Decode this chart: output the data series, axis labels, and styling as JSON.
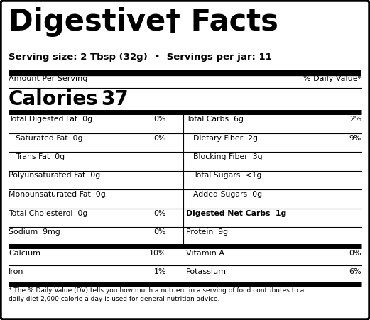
{
  "title_part1": "Digestive",
  "title_sup": "†",
  "title_part2": " Facts",
  "serving_size": "Serving size: 2 Tbsp (32g)  •  Servings per jar: 11",
  "amount_per_serving": "Amount Per Serving",
  "daily_value_header": "% Daily Value*",
  "calories_label": "Calories",
  "calories_value": "37",
  "left_nutrients": [
    {
      "name": "Total Digested Fat",
      "amount": "0g",
      "dv": "0%",
      "indent": 0,
      "bold_name": false
    },
    {
      "name": "Saturated Fat",
      "amount": "0g",
      "dv": "0%",
      "indent": 1,
      "bold_name": false
    },
    {
      "name": "Trans Fat",
      "amount": "0g",
      "dv": "",
      "indent": 1,
      "bold_name": false
    },
    {
      "name": "Polyunsaturated Fat",
      "amount": "0g",
      "dv": "",
      "indent": 0,
      "bold_name": false
    },
    {
      "name": "Monounsaturated Fat",
      "amount": "0g",
      "dv": "",
      "indent": 0,
      "bold_name": false
    },
    {
      "name": "Total Cholesterol",
      "amount": "0g",
      "dv": "0%",
      "indent": 0,
      "bold_name": false
    },
    {
      "name": "Sodium",
      "amount": "9mg",
      "dv": "0%",
      "indent": 0,
      "bold_name": false
    }
  ],
  "right_nutrients": [
    {
      "name": "Total Carbs",
      "amount": "6g",
      "dv": "2%",
      "indent": 0,
      "bold_name": false
    },
    {
      "name": "Dietary Fiber",
      "amount": "2g",
      "dv": "9%",
      "indent": 1,
      "bold_name": false
    },
    {
      "name": "Blocking Fiber",
      "amount": "3g",
      "dv": "",
      "indent": 1,
      "bold_name": false
    },
    {
      "name": "Total Sugars",
      "amount": "<1g",
      "dv": "",
      "indent": 1,
      "bold_name": false
    },
    {
      "name": "Added Sugars",
      "amount": "0g",
      "dv": "",
      "indent": 1,
      "bold_name": false
    },
    {
      "name": "Digested Net Carbs",
      "amount": "1g",
      "dv": "",
      "indent": 0,
      "bold_name": true
    },
    {
      "name": "Protein",
      "amount": "9g",
      "dv": "",
      "indent": 0,
      "bold_name": false
    }
  ],
  "vitamins_left": [
    {
      "name": "Calcium",
      "dv": "10%"
    },
    {
      "name": "Iron",
      "dv": "1%"
    }
  ],
  "vitamins_right": [
    {
      "name": "Vitamin A",
      "dv": "0%"
    },
    {
      "name": "Potassium",
      "dv": "6%"
    }
  ],
  "footnote_line1": "* The % Daily Value (DV) tells you how much a nutrient in a serving of food contributes to a",
  "footnote_line2": "daily diet 2,000 calorie a day is used for general nutrition advice.",
  "bg_color": "#ffffff",
  "text_color": "#000000",
  "border_color": "#000000",
  "title_fontsize": 30,
  "serving_fontsize": 9.5,
  "section_fontsize": 8.0,
  "calories_fontsize": 20,
  "nutrient_fontsize": 7.8,
  "vitamin_fontsize": 8.0,
  "footnote_fontsize": 6.5
}
